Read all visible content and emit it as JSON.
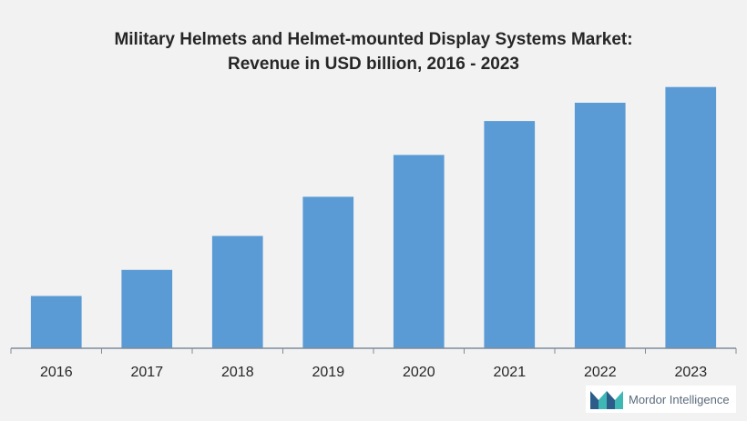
{
  "chart_data": {
    "type": "bar",
    "title_lines": [
      "Military Helmets and Helmet-mounted Display Systems Market:",
      "Revenue in USD billion, 2016 - 2023"
    ],
    "categories": [
      "2016",
      "2017",
      "2018",
      "2019",
      "2020",
      "2021",
      "2022",
      "2023"
    ],
    "values": [
      1.0,
      1.5,
      2.15,
      2.9,
      3.7,
      4.35,
      4.7,
      5.0
    ],
    "ylim": [
      0,
      5.1
    ],
    "grid": false,
    "legend": "none",
    "bar_color": "#5b9bd5"
  },
  "watermark": {
    "brand": "Mordor Intelligence",
    "icon": "mordor-intelligence-logo-icon"
  }
}
